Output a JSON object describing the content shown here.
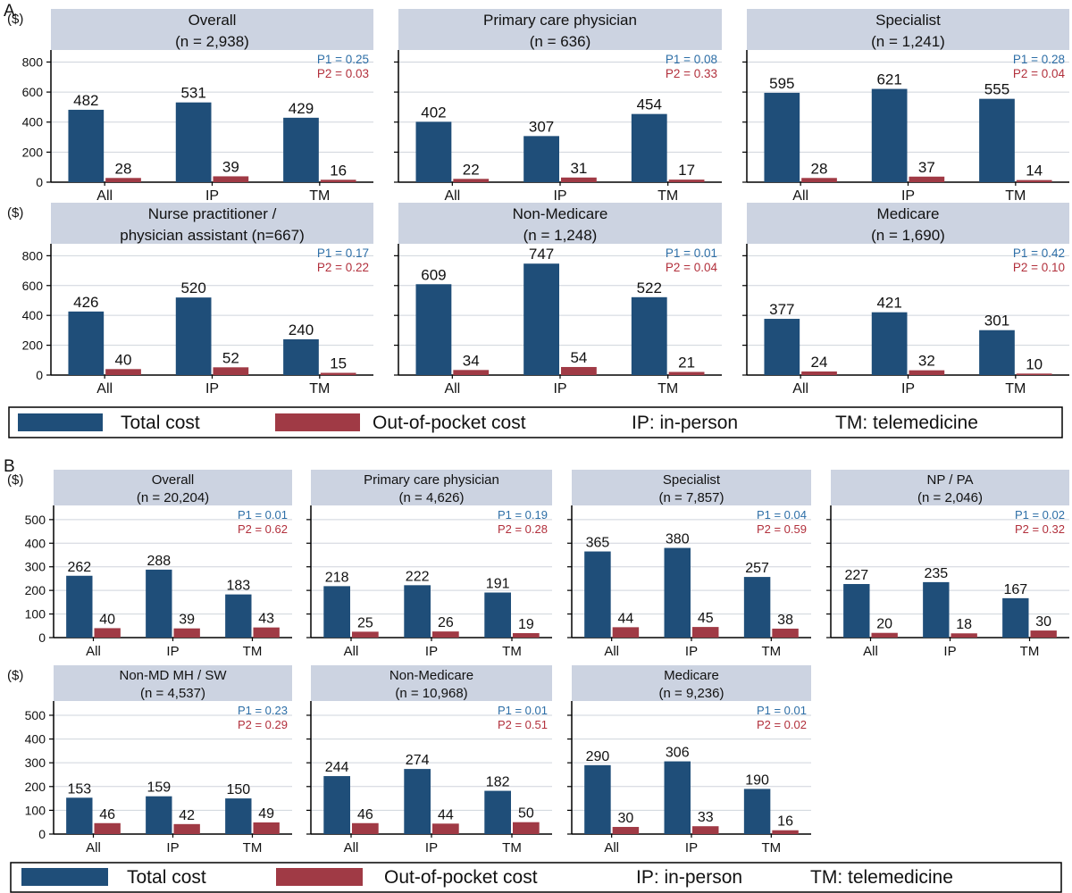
{
  "panel_labels": [
    "A",
    "B"
  ],
  "y_unit": "($)",
  "categories": [
    "All",
    "IP",
    "TM"
  ],
  "colors": {
    "total": "#1f4e79",
    "oop": "#a03a45",
    "p1": "#2e6fa7",
    "p2": "#b2303c",
    "title_bg": "#ccd3e1",
    "grid": "#cfd4dc",
    "axis": "#000000",
    "text": "#111111"
  },
  "legend": {
    "total": "Total cost",
    "oop": "Out-of-pocket cost",
    "ip": "IP: in-person",
    "tm": "TM: telemedicine"
  },
  "chart_data": [
    {
      "type": "bar",
      "panel": "A",
      "title": [
        "Overall",
        "(n = 2,938)"
      ],
      "ylim": [
        0,
        880
      ],
      "yticks": [
        0,
        200,
        400,
        600,
        800
      ],
      "categories": [
        "All",
        "IP",
        "TM"
      ],
      "series": [
        {
          "name": "Total cost",
          "values": [
            482,
            531,
            429
          ]
        },
        {
          "name": "Out-of-pocket cost",
          "values": [
            28,
            39,
            16
          ]
        }
      ],
      "p1": "P1 = 0.25",
      "p2": "P2 = 0.03"
    },
    {
      "type": "bar",
      "panel": "A",
      "title": [
        "Primary care physician",
        "(n = 636)"
      ],
      "ylim": [
        0,
        880
      ],
      "yticks": [
        0,
        200,
        400,
        600,
        800
      ],
      "categories": [
        "All",
        "IP",
        "TM"
      ],
      "series": [
        {
          "name": "Total cost",
          "values": [
            402,
            307,
            454
          ]
        },
        {
          "name": "Out-of-pocket cost",
          "values": [
            22,
            31,
            17
          ]
        }
      ],
      "p1": "P1 = 0.08",
      "p2": "P2 = 0.33"
    },
    {
      "type": "bar",
      "panel": "A",
      "title": [
        "Specialist",
        "(n = 1,241)"
      ],
      "ylim": [
        0,
        880
      ],
      "yticks": [
        0,
        200,
        400,
        600,
        800
      ],
      "categories": [
        "All",
        "IP",
        "TM"
      ],
      "series": [
        {
          "name": "Total cost",
          "values": [
            595,
            621,
            555
          ]
        },
        {
          "name": "Out-of-pocket cost",
          "values": [
            28,
            37,
            14
          ]
        }
      ],
      "p1": "P1 = 0.28",
      "p2": "P2 = 0.04"
    },
    {
      "type": "bar",
      "panel": "A",
      "title": [
        "Nurse practitioner /",
        "physician assistant (n=667)"
      ],
      "ylim": [
        0,
        880
      ],
      "yticks": [
        0,
        200,
        400,
        600,
        800
      ],
      "categories": [
        "All",
        "IP",
        "TM"
      ],
      "series": [
        {
          "name": "Total cost",
          "values": [
            426,
            520,
            240
          ]
        },
        {
          "name": "Out-of-pocket cost",
          "values": [
            40,
            52,
            15
          ]
        }
      ],
      "p1": "P1 = 0.17",
      "p2": "P2 = 0.22"
    },
    {
      "type": "bar",
      "panel": "A",
      "title": [
        "Non-Medicare",
        "(n = 1,248)"
      ],
      "ylim": [
        0,
        880
      ],
      "yticks": [
        0,
        200,
        400,
        600,
        800
      ],
      "categories": [
        "All",
        "IP",
        "TM"
      ],
      "series": [
        {
          "name": "Total cost",
          "values": [
            609,
            747,
            522
          ]
        },
        {
          "name": "Out-of-pocket cost",
          "values": [
            34,
            54,
            21
          ]
        }
      ],
      "p1": "P1 = 0.01",
      "p2": "P2 = 0.04"
    },
    {
      "type": "bar",
      "panel": "A",
      "title": [
        "Medicare",
        "(n = 1,690)"
      ],
      "ylim": [
        0,
        880
      ],
      "yticks": [
        0,
        200,
        400,
        600,
        800
      ],
      "categories": [
        "All",
        "IP",
        "TM"
      ],
      "series": [
        {
          "name": "Total cost",
          "values": [
            377,
            421,
            301
          ]
        },
        {
          "name": "Out-of-pocket cost",
          "values": [
            24,
            32,
            10
          ]
        }
      ],
      "p1": "P1 = 0.42",
      "p2": "P2 = 0.10"
    },
    {
      "type": "bar",
      "panel": "B",
      "title": [
        "Overall",
        "(n = 20,204)"
      ],
      "ylim": [
        0,
        560
      ],
      "yticks": [
        0,
        100,
        200,
        300,
        400,
        500
      ],
      "categories": [
        "All",
        "IP",
        "TM"
      ],
      "series": [
        {
          "name": "Total cost",
          "values": [
            262,
            288,
            183
          ]
        },
        {
          "name": "Out-of-pocket cost",
          "values": [
            40,
            39,
            43
          ]
        }
      ],
      "p1": "P1 = 0.01",
      "p2": "P2 = 0.62"
    },
    {
      "type": "bar",
      "panel": "B",
      "title": [
        "Primary care physician",
        "(n = 4,626)"
      ],
      "ylim": [
        0,
        560
      ],
      "yticks": [
        0,
        100,
        200,
        300,
        400,
        500
      ],
      "categories": [
        "All",
        "IP",
        "TM"
      ],
      "series": [
        {
          "name": "Total cost",
          "values": [
            218,
            222,
            191
          ]
        },
        {
          "name": "Out-of-pocket cost",
          "values": [
            25,
            26,
            19
          ]
        }
      ],
      "p1": "P1 = 0.19",
      "p2": "P2 = 0.28"
    },
    {
      "type": "bar",
      "panel": "B",
      "title": [
        "Specialist",
        "(n = 7,857)"
      ],
      "ylim": [
        0,
        560
      ],
      "yticks": [
        0,
        100,
        200,
        300,
        400,
        500
      ],
      "categories": [
        "All",
        "IP",
        "TM"
      ],
      "series": [
        {
          "name": "Total cost",
          "values": [
            365,
            380,
            257
          ]
        },
        {
          "name": "Out-of-pocket cost",
          "values": [
            44,
            45,
            38
          ]
        }
      ],
      "p1": "P1 = 0.04",
      "p2": "P2 = 0.59"
    },
    {
      "type": "bar",
      "panel": "B",
      "title": [
        "NP / PA",
        "(n = 2,046)"
      ],
      "ylim": [
        0,
        560
      ],
      "yticks": [
        0,
        100,
        200,
        300,
        400,
        500
      ],
      "categories": [
        "All",
        "IP",
        "TM"
      ],
      "series": [
        {
          "name": "Total cost",
          "values": [
            227,
            235,
            167
          ]
        },
        {
          "name": "Out-of-pocket cost",
          "values": [
            20,
            18,
            30
          ]
        }
      ],
      "p1": "P1 = 0.02",
      "p2": "P2 = 0.32"
    },
    {
      "type": "bar",
      "panel": "B",
      "title": [
        "Non-MD MH / SW",
        "(n = 4,537)"
      ],
      "ylim": [
        0,
        560
      ],
      "yticks": [
        0,
        100,
        200,
        300,
        400,
        500
      ],
      "categories": [
        "All",
        "IP",
        "TM"
      ],
      "series": [
        {
          "name": "Total cost",
          "values": [
            153,
            159,
            150
          ]
        },
        {
          "name": "Out-of-pocket cost",
          "values": [
            46,
            42,
            49
          ]
        }
      ],
      "p1": "P1 = 0.23",
      "p2": "P2 = 0.29"
    },
    {
      "type": "bar",
      "panel": "B",
      "title": [
        "Non-Medicare",
        "(n = 10,968)"
      ],
      "ylim": [
        0,
        560
      ],
      "yticks": [
        0,
        100,
        200,
        300,
        400,
        500
      ],
      "categories": [
        "All",
        "IP",
        "TM"
      ],
      "series": [
        {
          "name": "Total cost",
          "values": [
            244,
            274,
            182
          ]
        },
        {
          "name": "Out-of-pocket cost",
          "values": [
            46,
            44,
            50
          ]
        }
      ],
      "p1": "P1 = 0.01",
      "p2": "P2 = 0.51"
    },
    {
      "type": "bar",
      "panel": "B",
      "title": [
        "Medicare",
        "(n = 9,236)"
      ],
      "ylim": [
        0,
        560
      ],
      "yticks": [
        0,
        100,
        200,
        300,
        400,
        500
      ],
      "categories": [
        "All",
        "IP",
        "TM"
      ],
      "series": [
        {
          "name": "Total cost",
          "values": [
            290,
            306,
            190
          ]
        },
        {
          "name": "Out-of-pocket cost",
          "values": [
            30,
            33,
            16
          ]
        }
      ],
      "p1": "P1 = 0.01",
      "p2": "P2 = 0.02"
    }
  ]
}
